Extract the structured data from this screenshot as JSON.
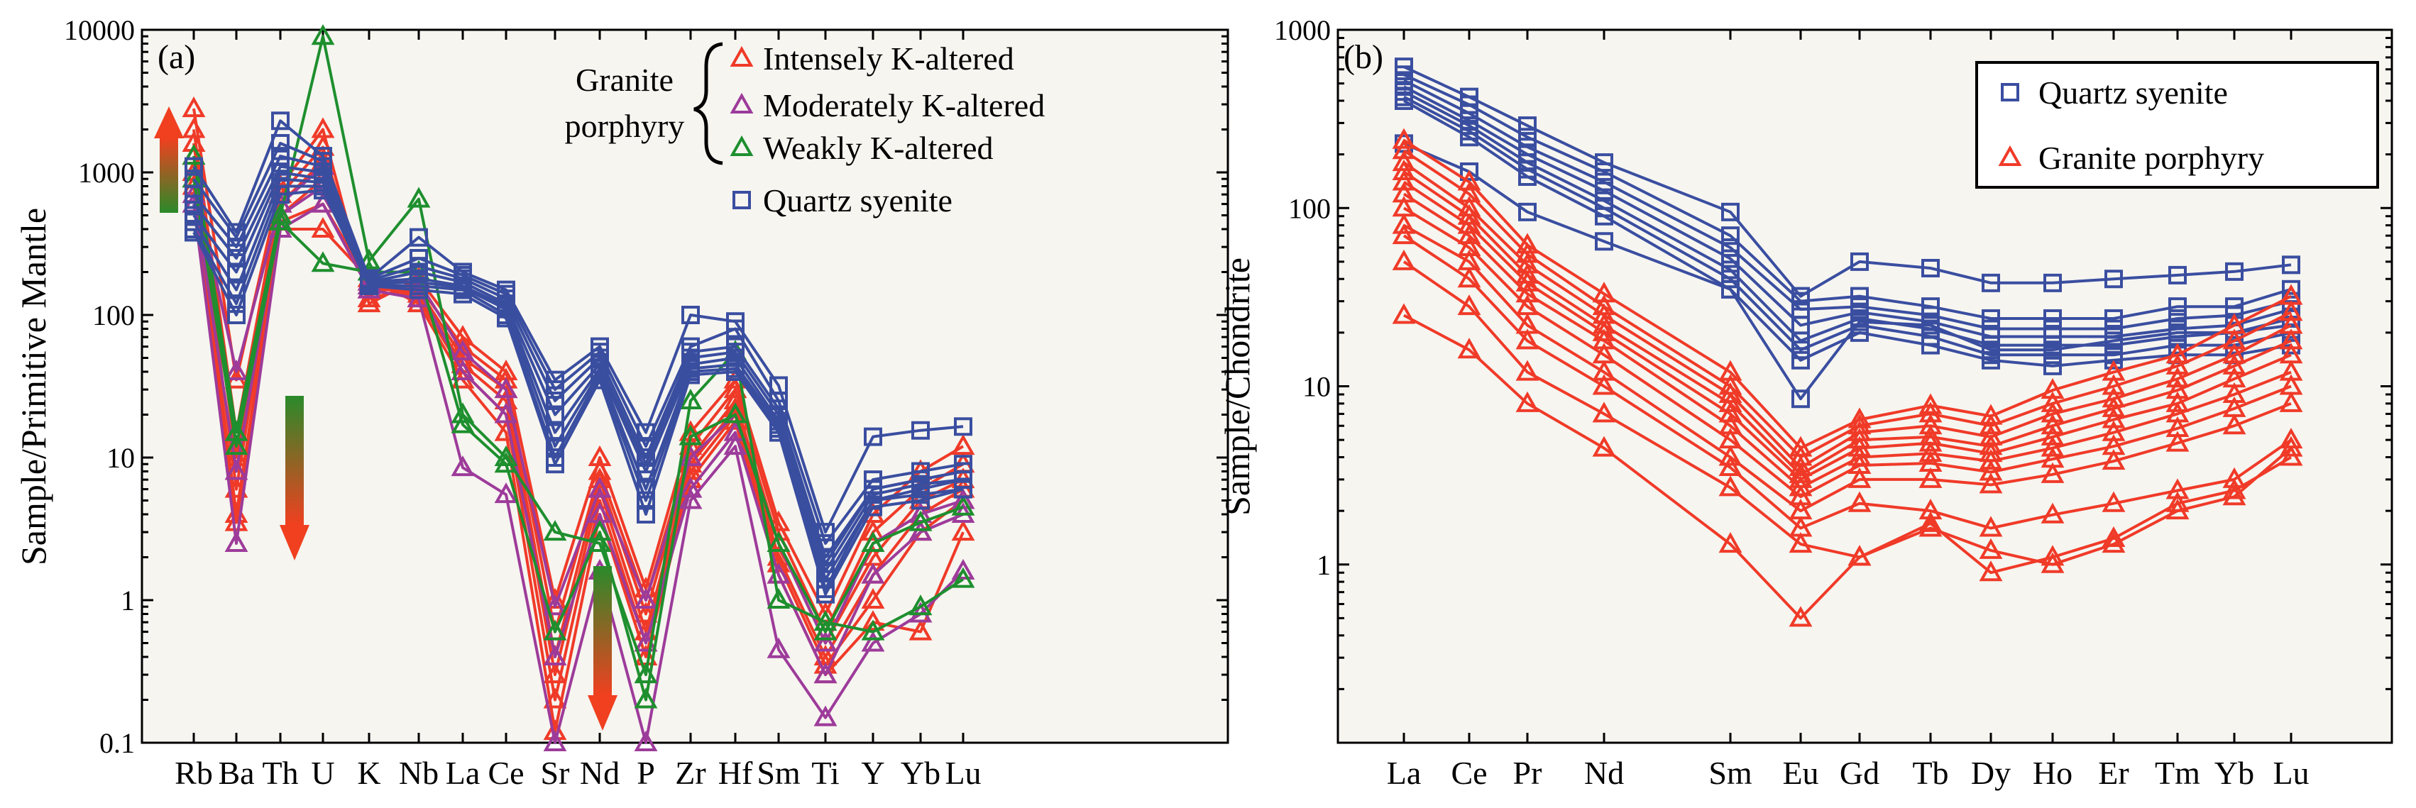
{
  "colors": {
    "background": "#f6f5f0",
    "axis": "#000000",
    "quartz": "#3a4ea0",
    "intense": "#f03a28",
    "moderate": "#9d3b9a",
    "weak": "#1e8f2e",
    "arrow_top": "#f04020",
    "arrow_bottom": "#2a8a2a"
  },
  "chart_data": [
    {
      "type": "line",
      "scale": "log",
      "panel_label": "(a)",
      "ylabel": "Sample/Primitive Mantle",
      "xlabel": "",
      "ylim": [
        0.1,
        10000
      ],
      "ytick_labels": [
        "0.1",
        "1",
        "10",
        "100",
        "1000",
        "10000"
      ],
      "categories": [
        "Rb",
        "Ba",
        "Th",
        "U",
        "K",
        "Nb",
        "La",
        "Ce",
        "Sr",
        "Nd",
        "P",
        "Zr",
        "Hf",
        "Sm",
        "Ti",
        "Y",
        "Yb",
        "Lu"
      ],
      "legend": {
        "bracket_label_line1": "Granite",
        "bracket_label_line2": "porphyry",
        "entries": [
          {
            "label": "Intensely K-altered",
            "marker": "triangle",
            "color_key": "intense"
          },
          {
            "label": "Moderately K-altered",
            "marker": "triangle",
            "color_key": "moderate"
          },
          {
            "label": "Weakly K-altered",
            "marker": "triangle",
            "color_key": "weak"
          },
          {
            "label": "Quartz syenite",
            "marker": "square",
            "color_key": "quartz"
          }
        ]
      },
      "series": [
        {
          "name": "Quartz syenite 1",
          "group": "quartz",
          "values": [
            1100,
            380,
            2300,
            1300,
            180,
            350,
            200,
            150,
            35,
            60,
            15,
            100,
            90,
            32,
            3.0,
            14,
            15.5,
            16.5
          ]
        },
        {
          "name": "Quartz syenite 2",
          "group": "quartz",
          "values": [
            900,
            350,
            1600,
            1200,
            180,
            250,
            190,
            140,
            30,
            55,
            12,
            60,
            80,
            25,
            2.5,
            7,
            8,
            9
          ]
        },
        {
          "name": "Quartz syenite 3",
          "group": "quartz",
          "values": [
            700,
            300,
            1300,
            1100,
            175,
            220,
            180,
            130,
            25,
            50,
            10,
            55,
            60,
            22,
            2.0,
            6,
            7,
            8
          ]
        },
        {
          "name": "Quartz syenite 4",
          "group": "quartz",
          "values": [
            600,
            250,
            1100,
            1000,
            170,
            200,
            170,
            120,
            20,
            45,
            9,
            50,
            55,
            20,
            1.8,
            6,
            7,
            8
          ]
        },
        {
          "name": "Quartz syenite 5",
          "group": "quartz",
          "values": [
            500,
            200,
            1000,
            900,
            170,
            180,
            160,
            115,
            15,
            42,
            8,
            45,
            50,
            18,
            1.6,
            5.5,
            6.5,
            7
          ]
        },
        {
          "name": "Quartz syenite 6",
          "group": "quartz",
          "values": [
            450,
            150,
            900,
            850,
            165,
            170,
            155,
            110,
            12,
            40,
            6,
            42,
            45,
            17,
            1.4,
            5,
            6,
            7
          ]
        },
        {
          "name": "Quartz syenite 7",
          "group": "quartz",
          "values": [
            400,
            120,
            800,
            800,
            160,
            160,
            150,
            100,
            10,
            38,
            5,
            40,
            42,
            16,
            1.2,
            5,
            5.5,
            6
          ]
        },
        {
          "name": "Quartz syenite 8",
          "group": "quartz",
          "values": [
            380,
            100,
            700,
            750,
            160,
            150,
            140,
            95,
            9,
            35,
            4,
            38,
            40,
            15,
            1.1,
            4.5,
            5,
            6
          ]
        },
        {
          "name": "Intensely K-altered 1",
          "group": "intense",
          "values": [
            2800,
            35,
            800,
            2000,
            120,
            180,
            70,
            40,
            1.0,
            10,
            1.2,
            15,
            35,
            3.5,
            0.8,
            4,
            8,
            12
          ]
        },
        {
          "name": "Intensely K-altered 2",
          "group": "intense",
          "values": [
            2000,
            15,
            700,
            1500,
            130,
            160,
            60,
            35,
            0.6,
            8,
            1.0,
            12,
            30,
            3.0,
            0.6,
            3,
            6,
            9
          ]
        },
        {
          "name": "Intensely K-altered 3",
          "group": "intense",
          "values": [
            1600,
            10,
            600,
            1200,
            150,
            150,
            50,
            30,
            0.4,
            7,
            0.8,
            10,
            25,
            2.5,
            0.5,
            2,
            5,
            7
          ]
        },
        {
          "name": "Intensely K-altered 4",
          "group": "intense",
          "values": [
            1300,
            6,
            500,
            900,
            160,
            140,
            45,
            25,
            0.3,
            6,
            0.6,
            9,
            22,
            2.0,
            0.4,
            1.5,
            4,
            6
          ]
        },
        {
          "name": "Intensely K-altered 5",
          "group": "intense",
          "values": [
            1000,
            4,
            450,
            600,
            170,
            130,
            40,
            20,
            0.2,
            5,
            0.5,
            8,
            20,
            1.8,
            0.35,
            1.0,
            3,
            5
          ]
        },
        {
          "name": "Intensely K-altered 6",
          "group": "intense",
          "values": [
            800,
            3.5,
            400,
            400,
            180,
            120,
            35,
            15,
            0.12,
            4,
            0.4,
            7,
            18,
            1.5,
            0.3,
            0.7,
            0.6,
            3
          ]
        },
        {
          "name": "Moderately K-altered 1",
          "group": "moderate",
          "values": [
            900,
            40,
            600,
            1100,
            170,
            170,
            55,
            30,
            0.9,
            6,
            1.0,
            10,
            20,
            2.5,
            0.5,
            2.5,
            4,
            5
          ]
        },
        {
          "name": "Moderately K-altered 2",
          "group": "moderate",
          "values": [
            700,
            8,
            500,
            800,
            160,
            150,
            40,
            20,
            0.4,
            4,
            0.5,
            6,
            15,
            1.5,
            0.3,
            1.5,
            3,
            4
          ]
        },
        {
          "name": "Moderately K-altered 3",
          "group": "moderate",
          "values": [
            600,
            2.5,
            400,
            600,
            150,
            130,
            8.5,
            5.5,
            0.1,
            1.6,
            0.1,
            5,
            12,
            0.45,
            0.15,
            0.5,
            0.8,
            1.6
          ]
        },
        {
          "name": "Weakly K-altered 1",
          "group": "weak",
          "values": [
            1300,
            15,
            500,
            9000,
            240,
            650,
            20,
            10,
            3.0,
            2.5,
            0.3,
            25,
            55,
            1.0,
            0.7,
            0.6,
            0.9,
            1.4
          ]
        },
        {
          "name": "Weakly K-altered 2",
          "group": "weak",
          "values": [
            900,
            12,
            450,
            230,
            200,
            200,
            17,
            9,
            0.6,
            3,
            0.2,
            14,
            20,
            2.5,
            0.6,
            2.5,
            3.5,
            4.5
          ]
        }
      ]
    },
    {
      "type": "line",
      "scale": "log",
      "panel_label": "(b)",
      "ylabel": "Sample/Chondrite",
      "xlabel": "",
      "ylim": [
        0.1,
        1000
      ],
      "ytick_labels": [
        "1",
        "10",
        "100",
        "1000"
      ],
      "categories": [
        "La",
        "Ce",
        "Pr",
        "Nd",
        "Sm",
        "Eu",
        "Gd",
        "Tb",
        "Dy",
        "Ho",
        "Er",
        "Tm",
        "Yb",
        "Lu"
      ],
      "legend": {
        "entries": [
          {
            "label": "Quartz syenite",
            "marker": "square",
            "color_key": "quartz"
          },
          {
            "label": "Granite porphyry",
            "marker": "triangle",
            "color_key": "intense"
          }
        ]
      },
      "series": [
        {
          "name": "Quartz syenite 1",
          "group": "quartz",
          "values": [
            620,
            420,
            290,
            180,
            95,
            32,
            50,
            46,
            38,
            38,
            40,
            42,
            44,
            48
          ]
        },
        {
          "name": "Quartz syenite 2",
          "group": "quartz",
          "values": [
            560,
            380,
            250,
            160,
            70,
            30,
            32,
            28,
            24,
            24,
            24,
            28,
            28,
            35
          ]
        },
        {
          "name": "Quartz syenite 3",
          "group": "quartz",
          "values": [
            520,
            340,
            220,
            140,
            60,
            27,
            28,
            25,
            21,
            21,
            21,
            24,
            25,
            30
          ]
        },
        {
          "name": "Quartz syenite 4",
          "group": "quartz",
          "values": [
            480,
            310,
            200,
            125,
            52,
            22,
            26,
            23,
            19,
            19,
            19,
            21,
            22,
            27
          ]
        },
        {
          "name": "Quartz syenite 5",
          "group": "quartz",
          "values": [
            450,
            290,
            180,
            110,
            45,
            18,
            24,
            21,
            17,
            17,
            17,
            19,
            20,
            24
          ]
        },
        {
          "name": "Quartz syenite 6",
          "group": "quartz",
          "values": [
            420,
            270,
            165,
            100,
            40,
            16,
            22,
            19,
            15,
            15,
            15,
            17,
            17,
            20
          ]
        },
        {
          "name": "Quartz syenite 7",
          "group": "quartz",
          "values": [
            400,
            250,
            150,
            90,
            35,
            14,
            20,
            17,
            14,
            13,
            14,
            15,
            15,
            17
          ]
        },
        {
          "name": "Quartz syenite 8",
          "group": "quartz",
          "values": [
            230,
            160,
            95,
            65,
            35,
            8.5,
            23,
            22,
            16,
            16,
            18,
            20,
            20,
            22
          ]
        },
        {
          "name": "Granite porphyry 1",
          "group": "porphyry",
          "values": [
            240,
            140,
            62,
            33,
            12,
            4.5,
            6.5,
            7.8,
            6.8,
            9.5,
            12,
            15,
            22,
            32
          ]
        },
        {
          "name": "Granite porphyry 2",
          "group": "porphyry",
          "values": [
            210,
            120,
            55,
            28,
            10,
            4.0,
            6.0,
            7.0,
            6.0,
            8.0,
            10,
            13,
            18,
            26
          ]
        },
        {
          "name": "Granite porphyry 3",
          "group": "porphyry",
          "values": [
            180,
            100,
            48,
            25,
            9,
            3.5,
            5.5,
            6.0,
            5.2,
            7.0,
            8.5,
            11,
            15,
            22
          ]
        },
        {
          "name": "Granite porphyry 4",
          "group": "porphyry",
          "values": [
            160,
            90,
            42,
            22,
            8,
            3.2,
            5.0,
            5.2,
            4.6,
            6.0,
            7.5,
            9.5,
            13,
            18
          ]
        },
        {
          "name": "Granite porphyry 5",
          "group": "porphyry",
          "values": [
            140,
            80,
            38,
            20,
            7,
            3.0,
            4.5,
            4.8,
            4.2,
            5.2,
            6.5,
            8.0,
            11,
            15
          ]
        },
        {
          "name": "Granite porphyry 6",
          "group": "porphyry",
          "values": [
            120,
            70,
            33,
            18,
            6,
            2.7,
            4.0,
            4.2,
            3.8,
            4.5,
            5.5,
            7.0,
            9,
            12
          ]
        },
        {
          "name": "Granite porphyry 7",
          "group": "porphyry",
          "values": [
            100,
            60,
            28,
            15,
            5,
            2.4,
            3.6,
            3.7,
            3.3,
            3.9,
            4.6,
            5.8,
            7.5,
            10
          ]
        },
        {
          "name": "Granite porphyry 8",
          "group": "porphyry",
          "values": [
            80,
            50,
            22,
            12,
            4,
            2.0,
            3.0,
            3.0,
            2.8,
            3.2,
            3.8,
            4.8,
            6.0,
            8
          ]
        },
        {
          "name": "Granite porphyry 9",
          "group": "porphyry",
          "values": [
            70,
            40,
            18,
            10,
            3.5,
            1.6,
            2.2,
            2.0,
            1.6,
            1.9,
            2.2,
            2.6,
            3.0,
            5
          ]
        },
        {
          "name": "Granite porphyry 10",
          "group": "porphyry",
          "values": [
            50,
            28,
            12,
            7,
            2.7,
            1.3,
            1.1,
            1.6,
            1.2,
            1.0,
            1.3,
            2.0,
            2.4,
            4.5
          ]
        },
        {
          "name": "Granite porphyry 11",
          "group": "porphyry",
          "values": [
            25,
            16,
            8,
            4.5,
            1.3,
            0.5,
            1.1,
            1.7,
            0.9,
            1.1,
            1.4,
            2.2,
            2.6,
            4
          ]
        }
      ]
    }
  ]
}
